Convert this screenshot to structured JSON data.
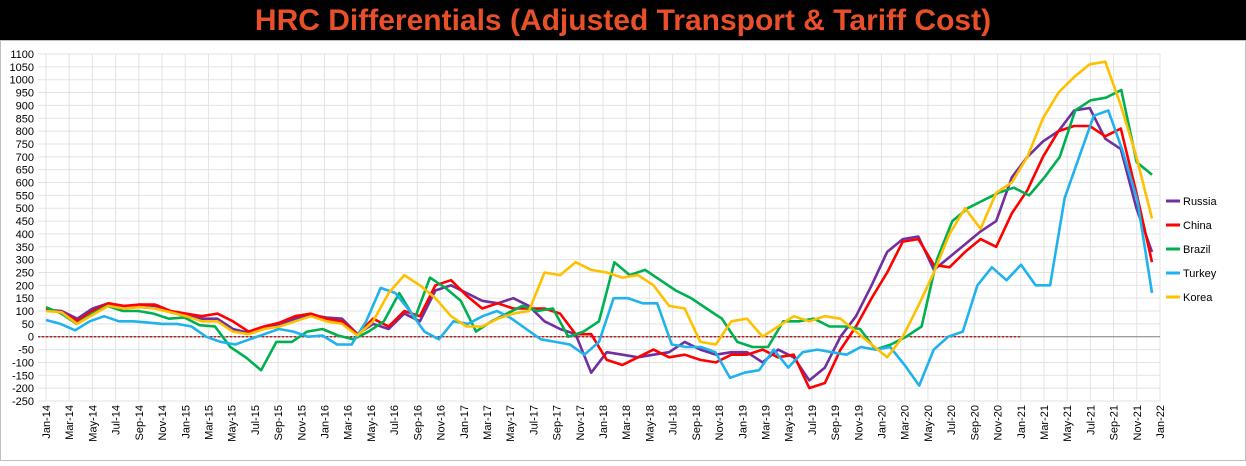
{
  "chart_data": {
    "type": "line",
    "title": "HRC Differentials (Adjusted Transport & Tariff Cost)",
    "xlabel": "",
    "ylabel": "",
    "ylim": [
      -250,
      1100
    ],
    "ytick_step": 50,
    "grid": true,
    "legend_position": "right",
    "x_tick_labels": [
      "Jan-14",
      "Mar-14",
      "May-14",
      "Jul-14",
      "Sep-14",
      "Nov-14",
      "Jan-15",
      "Mar-15",
      "May-15",
      "Jul-15",
      "Sep-15",
      "Nov-15",
      "Jan-16",
      "Mar-16",
      "May-16",
      "Jul-16",
      "Sep-16",
      "Nov-16",
      "Jan-17",
      "Mar-17",
      "May-17",
      "Jul-17",
      "Sep-17",
      "Nov-17",
      "Jan-18",
      "Mar-18",
      "May-18",
      "Jul-18",
      "Sep-18",
      "Nov-18",
      "Jan-19",
      "Mar-19",
      "May-19",
      "Jul-19",
      "Sep-19",
      "Nov-19",
      "Jan-20",
      "Mar-20",
      "May-20",
      "Jul-20",
      "Sep-20",
      "Nov-20",
      "Jan-21",
      "Mar-21",
      "May-21",
      "Jul-21",
      "Sep-21",
      "Nov-21",
      "Jan-22"
    ],
    "zero_line_end": "Jan-21",
    "colors": {
      "title_bg": "#000000",
      "title_text": "#e8502a",
      "grid": "#e3e3e3",
      "zero_line": "#c00000"
    },
    "series": [
      {
        "name": "Russia",
        "color": "#7030a0",
        "values": [
          105,
          100,
          70,
          110,
          130,
          115,
          125,
          120,
          95,
          80,
          70,
          70,
          30,
          15,
          40,
          45,
          70,
          85,
          75,
          70,
          10,
          50,
          30,
          90,
          60,
          180,
          200,
          170,
          140,
          130,
          150,
          120,
          60,
          30,
          10,
          -140,
          -60,
          -70,
          -80,
          -70,
          -60,
          -20,
          -50,
          -70,
          -60,
          -60,
          -100,
          -50,
          -80,
          -170,
          -120,
          0,
          80,
          200,
          330,
          380,
          390,
          260,
          310,
          360,
          410,
          450,
          620,
          700,
          760,
          800,
          880,
          890,
          770,
          730,
          500,
          330
        ]
      },
      {
        "name": "China",
        "color": "#ff0000",
        "values": [
          110,
          95,
          60,
          100,
          130,
          120,
          125,
          125,
          100,
          90,
          80,
          90,
          60,
          20,
          40,
          55,
          80,
          90,
          70,
          60,
          10,
          70,
          40,
          100,
          80,
          200,
          220,
          160,
          110,
          130,
          110,
          110,
          110,
          90,
          10,
          10,
          -90,
          -110,
          -80,
          -50,
          -80,
          -70,
          -90,
          -100,
          -70,
          -70,
          -50,
          -80,
          -70,
          -200,
          -180,
          -50,
          40,
          150,
          250,
          370,
          380,
          280,
          270,
          330,
          380,
          350,
          480,
          570,
          700,
          800,
          820,
          820,
          780,
          810,
          560,
          290
        ]
      },
      {
        "name": "Brazil",
        "color": "#00b050",
        "values": [
          115,
          90,
          50,
          90,
          120,
          100,
          100,
          90,
          70,
          75,
          45,
          40,
          -40,
          -80,
          -130,
          -20,
          -20,
          20,
          30,
          5,
          -10,
          20,
          60,
          170,
          70,
          230,
          190,
          140,
          20,
          60,
          90,
          120,
          100,
          110,
          0,
          20,
          60,
          290,
          240,
          260,
          220,
          180,
          150,
          110,
          70,
          -20,
          -40,
          -40,
          60,
          60,
          70,
          40,
          40,
          30,
          -50,
          -30,
          0,
          40,
          300,
          450,
          500,
          530,
          560,
          580,
          550,
          620,
          700,
          880,
          920,
          930,
          960,
          680,
          630
        ]
      },
      {
        "name": "Turkey",
        "color": "#1fb2ec",
        "values": [
          65,
          50,
          25,
          60,
          80,
          60,
          60,
          55,
          50,
          50,
          40,
          0,
          -20,
          -30,
          -10,
          10,
          30,
          20,
          0,
          5,
          -30,
          -30,
          60,
          190,
          170,
          100,
          20,
          -10,
          60,
          50,
          80,
          100,
          70,
          30,
          -10,
          -20,
          -30,
          -70,
          -20,
          150,
          150,
          130,
          130,
          -30,
          -40,
          -40,
          -60,
          -160,
          -140,
          -130,
          -50,
          -120,
          -60,
          -50,
          -60,
          -70,
          -40,
          -50,
          -40,
          -110,
          -190,
          -50,
          0,
          20,
          200,
          270,
          220,
          280,
          200,
          200,
          540,
          700,
          860,
          880,
          720,
          530,
          170
        ]
      },
      {
        "name": "Korea",
        "color": "#ffc000",
        "values": [
          100,
          95,
          50,
          85,
          120,
          110,
          115,
          110,
          95,
          80,
          60,
          60,
          20,
          10,
          30,
          40,
          60,
          80,
          60,
          50,
          5,
          60,
          170,
          240,
          200,
          150,
          80,
          40,
          40,
          70,
          90,
          100,
          250,
          240,
          290,
          260,
          250,
          230,
          240,
          200,
          120,
          110,
          -20,
          -30,
          60,
          70,
          0,
          40,
          80,
          60,
          80,
          70,
          20,
          -30,
          -80,
          0,
          120,
          250,
          400,
          500,
          420,
          560,
          600,
          700,
          850,
          950,
          1010,
          1060,
          1070,
          900,
          700,
          460
        ]
      }
    ]
  }
}
